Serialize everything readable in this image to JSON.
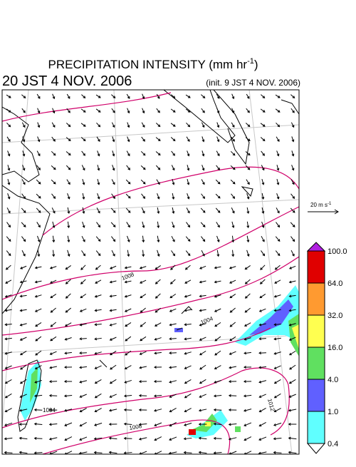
{
  "header": {
    "title": {
      "text": "PRECIPITATION INTENSITY (mm hr",
      "sup": "-1",
      "end": ")"
    },
    "valid_time": "20 JST 4 NOV. 2006",
    "init_time": "(init. 9 JST 4 NOV. 2006)"
  },
  "wind_scale": {
    "text": "20 m s",
    "sup": "-1"
  },
  "legend": {
    "labels": [
      "100.0",
      "64.0",
      "32.0",
      "16.0",
      "4.0",
      "1.0",
      "0.4"
    ],
    "colors": [
      "#b020e0",
      "#e00000",
      "#ff9a30",
      "#ffff50",
      "#60e060",
      "#6060ff",
      "#60ffff",
      "#ffffff"
    ]
  },
  "contour_labels": [
    "1008",
    "1004",
    "1004",
    "1008",
    "1012"
  ]
}
